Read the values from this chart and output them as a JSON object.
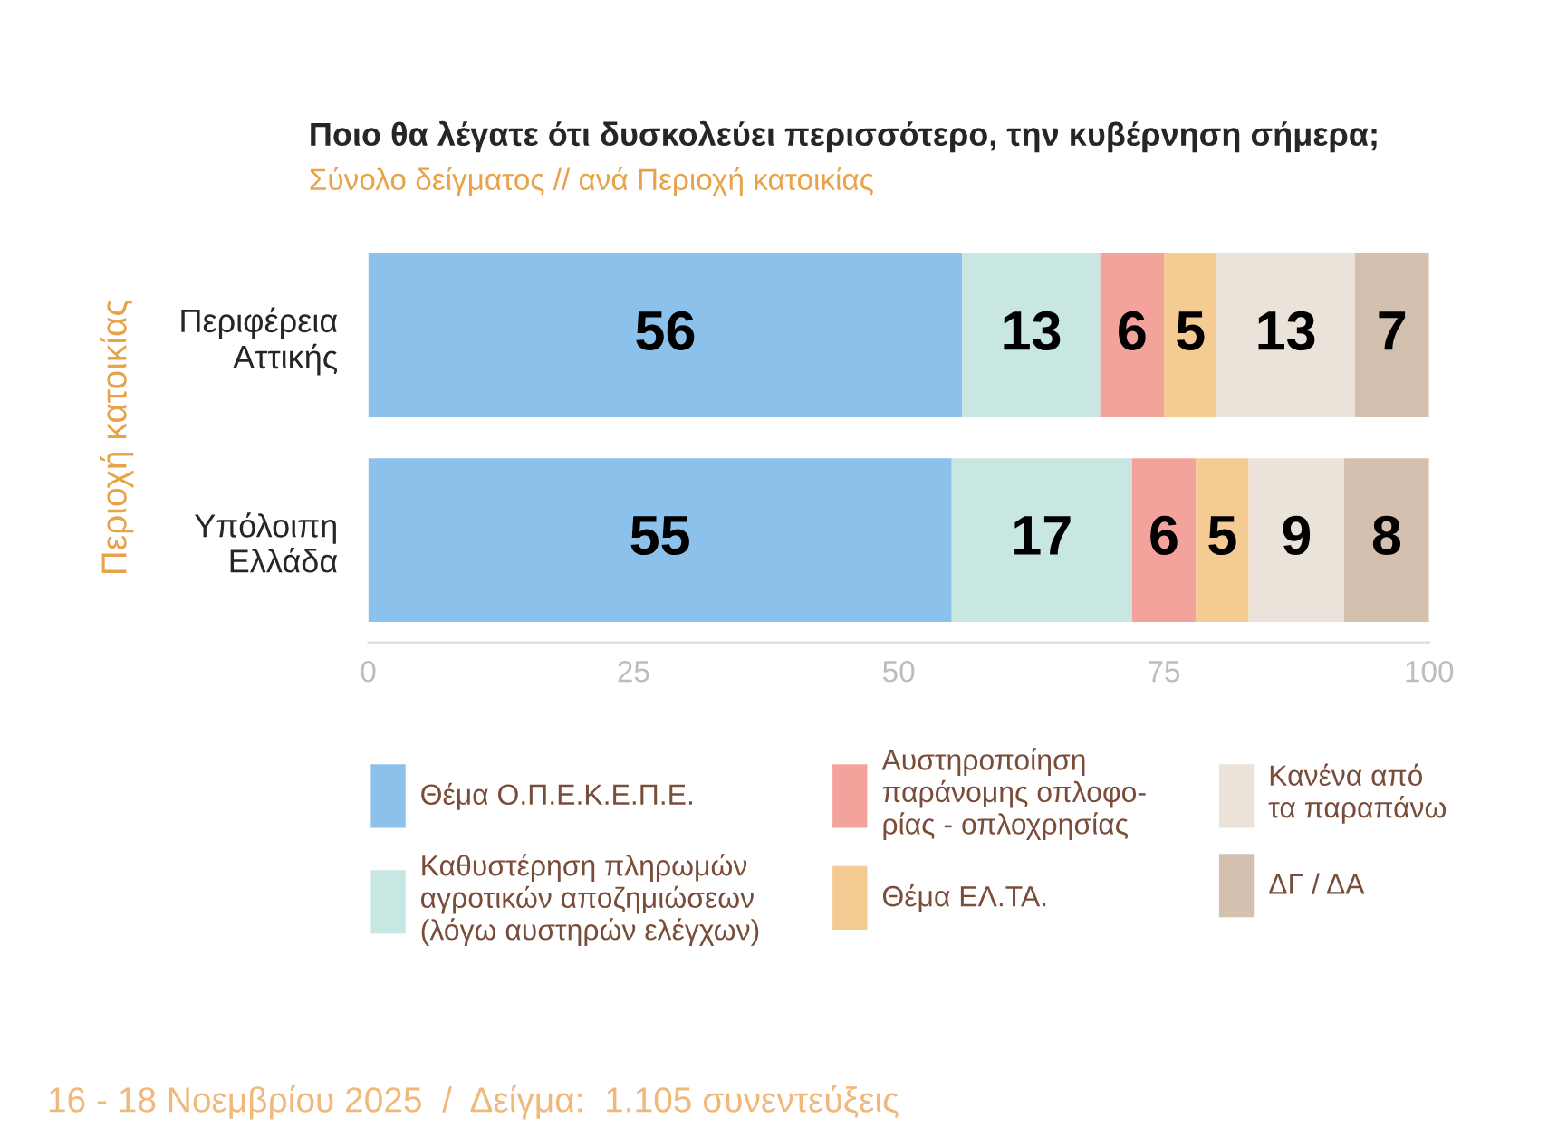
{
  "chart_data": {
    "type": "bar",
    "orientation": "horizontal",
    "stacked": true,
    "title": "Ποιο θα λέγατε ότι δυσκολεύει περισσότερο, την κυβέρνηση σήμερα;",
    "subtitle": "Σύνολο δείγματος // ανά Περιοχή κατοικίας",
    "ylabel": "Περιοχή κατοικίας",
    "categories": [
      "Περιφέρεια\nΑττικής",
      "Υπόλοιπη\nΕλλάδα"
    ],
    "series": [
      {
        "name": "Θέμα Ο.Π.Ε.Κ.Ε.Π.Ε.",
        "color": "#8cc1ec",
        "values": [
          56,
          55
        ]
      },
      {
        "name": "Καθυστέρηση πληρωμών\nαγροτικών αποζημιώσεων\n(λόγω αυστηρών ελέγχων)",
        "color": "#c8e7e2",
        "values": [
          13,
          17
        ]
      },
      {
        "name": "Αυστηροποίηση\nπαράνομης οπλοφο-\nρίας - οπλοχρησίας",
        "color": "#f4a39c",
        "values": [
          6,
          6
        ]
      },
      {
        "name": "Θέμα ΕΛ.ΤΑ.",
        "color": "#f5cb94",
        "values": [
          5,
          5
        ]
      },
      {
        "name": "Κανένα από\nτα παραπάνω",
        "color": "#ebe3da",
        "values": [
          13,
          9
        ]
      },
      {
        "name": "ΔΓ / ΔΑ",
        "color": "#d3c0ae",
        "values": [
          7,
          8
        ]
      }
    ],
    "xlim": [
      0,
      100
    ],
    "xticks": [
      0,
      25,
      50,
      75,
      100
    ],
    "data_labels": true,
    "grid": false,
    "legend": "bottom",
    "annotations": [
      "16 - 18 Νοεμβρίου 2025  /  Δείγμα:  1.105 συνεντεύξεις"
    ]
  }
}
